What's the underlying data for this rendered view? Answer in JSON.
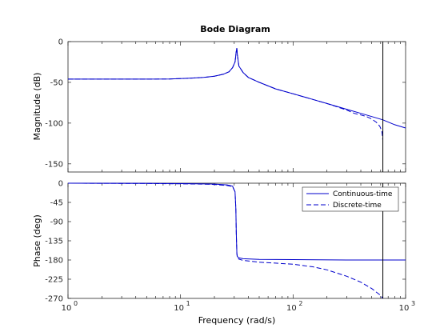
{
  "chart_data": {
    "type": "line",
    "title": "Bode Diagram",
    "xlabel": "Frequency  (rad/s)",
    "x_scale": "log",
    "xlim": [
      1,
      1000
    ],
    "x_ticks": [
      1,
      10,
      100,
      1000
    ],
    "x_tick_labels": [
      "10",
      "10",
      "10",
      "10"
    ],
    "x_tick_exponents": [
      "0",
      "1",
      "2",
      "3"
    ],
    "grid": false,
    "legend_position": "top-right",
    "vertical_marker": {
      "x": 628,
      "color": "#000000"
    },
    "line_color": "#0000cc",
    "panels": [
      {
        "name": "magnitude",
        "ylabel": "Magnitude (dB)",
        "ylim": [
          -160,
          0
        ],
        "y_ticks": [
          0,
          -50,
          -100,
          -150
        ],
        "y_tick_labels": [
          "0",
          "-50",
          "-100",
          "-150"
        ],
        "series": [
          {
            "name": "Continuous-time",
            "style": "solid",
            "x": [
              1,
              2,
              5,
              8,
              12,
              16,
              20,
              24,
              27,
              29,
              30.5,
              31.2,
              31.6,
              32,
              33,
              36,
              40,
              50,
              70,
              100,
              150,
              200,
              300,
              400,
              500,
              628,
              800,
              1000
            ],
            "y": [
              -46,
              -46,
              -46,
              -45.8,
              -45,
              -44,
              -42.5,
              -40,
              -37,
              -32,
              -25,
              -13,
              -8,
              -16,
              -30,
              -38,
              -44,
              -50,
              -58,
              -64,
              -71,
              -76,
              -83,
              -88,
              -92,
              -96,
              -102,
              -106
            ]
          },
          {
            "name": "Discrete-time",
            "style": "dashed",
            "x": [
              1,
              2,
              5,
              8,
              12,
              16,
              20,
              24,
              27,
              29,
              30.5,
              31.2,
              31.6,
              32,
              33,
              36,
              40,
              50,
              70,
              100,
              150,
              200,
              300,
              350,
              400,
              450,
              500,
              550,
              590,
              615,
              622,
              626
            ],
            "y": [
              -46,
              -46,
              -46,
              -45.8,
              -45,
              -44,
              -42.5,
              -40,
              -37,
              -32,
              -25,
              -13,
              -8,
              -16,
              -30,
              -38,
              -44,
              -50,
              -58,
              -64,
              -71,
              -76,
              -84,
              -88,
              -90,
              -92,
              -95,
              -99,
              -104,
              -110,
              -115,
              -120
            ]
          }
        ]
      },
      {
        "name": "phase",
        "ylabel": "Phase (deg)",
        "ylim": [
          -270,
          0
        ],
        "y_ticks": [
          0,
          -45,
          -90,
          -135,
          -180,
          -225,
          -270
        ],
        "y_tick_labels": [
          "0",
          "-45",
          "-90",
          "-135",
          "-180",
          "-225",
          "-270"
        ],
        "series": [
          {
            "name": "Continuous-time",
            "style": "solid",
            "x": [
              1,
              5,
              10,
              20,
              26,
              29,
              30.5,
              31,
              31.3,
              31.7,
              32,
              33,
              36,
              50,
              100,
              300,
              628,
              1000
            ],
            "y": [
              0,
              -0.5,
              -1,
              -2,
              -4,
              -7,
              -20,
              -60,
              -120,
              -165,
              -172,
              -175,
              -177,
              -178.5,
              -179,
              -180,
              -180,
              -180
            ]
          },
          {
            "name": "Discrete-time",
            "style": "dashed",
            "x": [
              1,
              5,
              10,
              15,
              20,
              26,
              29,
              30.5,
              31,
              31.3,
              31.7,
              32,
              33,
              36,
              50,
              100,
              150,
              200,
              300,
              400,
              500,
              600,
              628
            ],
            "y": [
              0,
              -0.6,
              -1.5,
              -2,
              -3,
              -5.5,
              -8,
              -20,
              -60,
              -120,
              -165,
              -175,
              -178,
              -181,
              -185,
              -190,
              -196,
              -203,
              -218,
              -232,
              -247,
              -263,
              -270
            ]
          }
        ]
      }
    ]
  }
}
